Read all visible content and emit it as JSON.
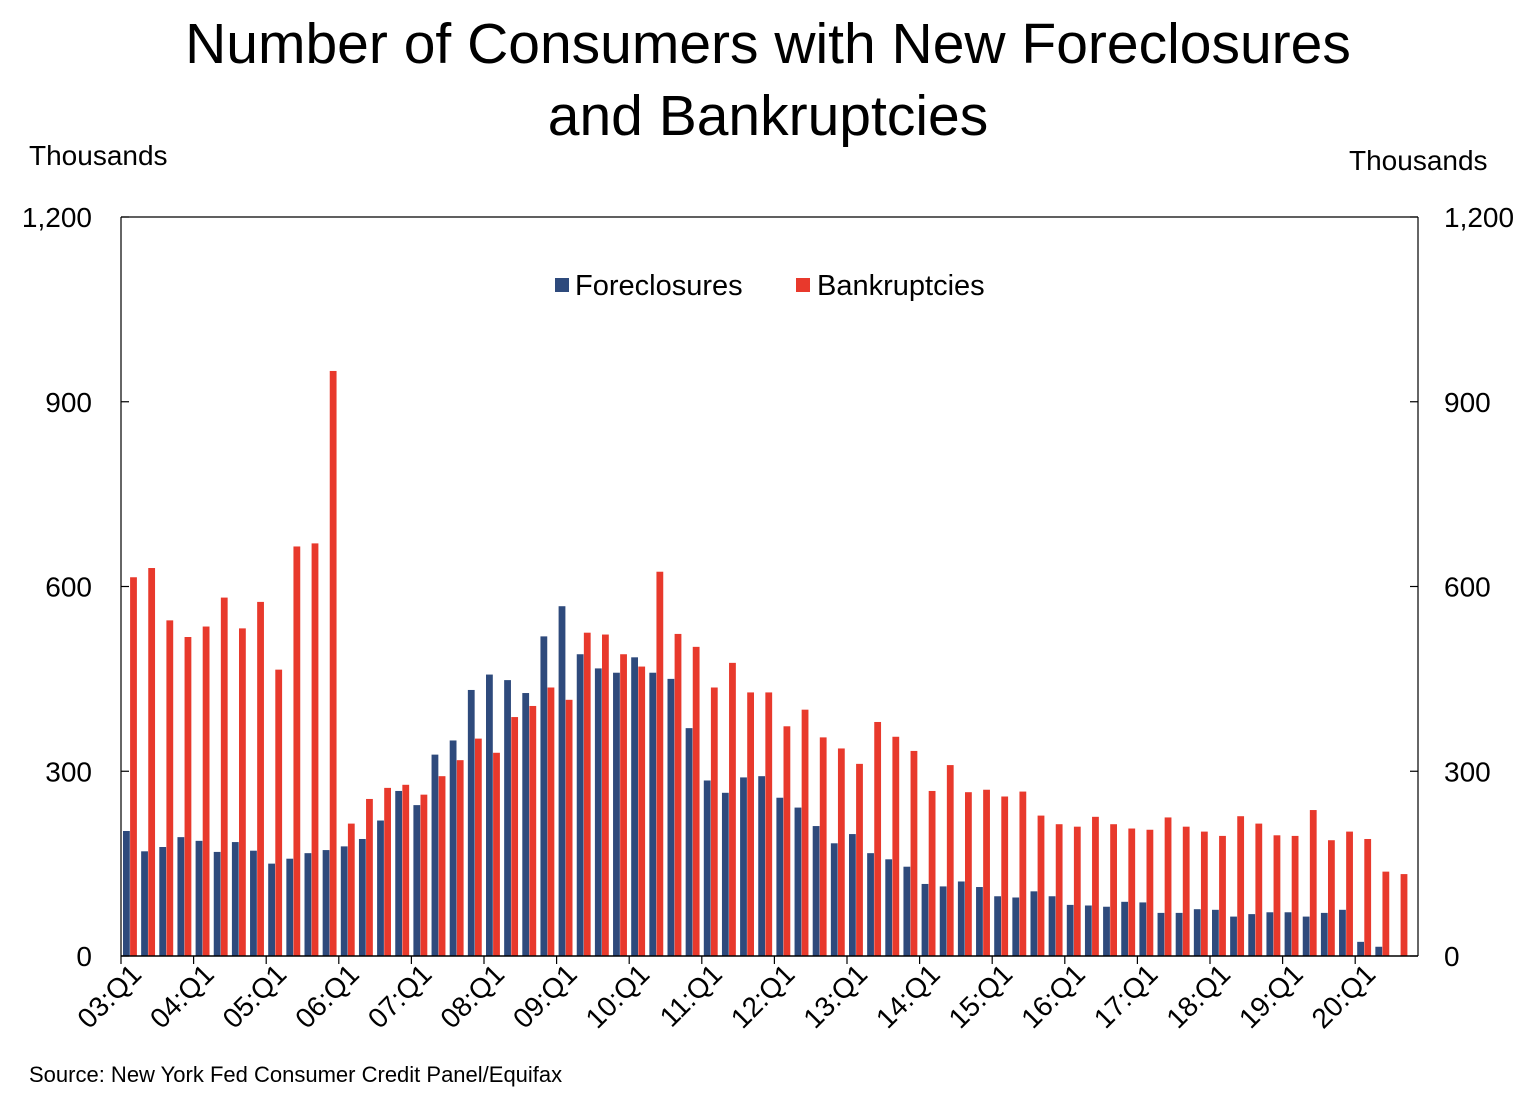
{
  "chart_data": {
    "type": "bar",
    "title": "Number of Consumers with New Foreclosures and Bankruptcies",
    "title_lines": [
      "Number of Consumers with New Foreclosures",
      "and Bankruptcies"
    ],
    "ylabel_left": "Thousands",
    "ylabel_right": "Thousands",
    "ylim": [
      0,
      1200
    ],
    "yticks": [
      0,
      300,
      600,
      900,
      1200
    ],
    "ytick_labels": [
      "0",
      "300",
      "600",
      "900",
      "1,200"
    ],
    "xtick_labels": [
      "03:Q1",
      "04:Q1",
      "05:Q1",
      "06:Q1",
      "07:Q1",
      "08:Q1",
      "09:Q1",
      "10:Q1",
      "11:Q1",
      "12:Q1",
      "13:Q1",
      "14:Q1",
      "15:Q1",
      "16:Q1",
      "17:Q1",
      "18:Q1",
      "19:Q1",
      "20:Q1"
    ],
    "legend_position": "top-center",
    "grid": false,
    "source": "Source: New York Fed Consumer Credit Panel/Equifax",
    "categories": [
      "03:Q1",
      "03:Q2",
      "03:Q3",
      "03:Q4",
      "04:Q1",
      "04:Q2",
      "04:Q3",
      "04:Q4",
      "05:Q1",
      "05:Q2",
      "05:Q3",
      "05:Q4",
      "06:Q1",
      "06:Q2",
      "06:Q3",
      "06:Q4",
      "07:Q1",
      "07:Q2",
      "07:Q3",
      "07:Q4",
      "08:Q1",
      "08:Q2",
      "08:Q3",
      "08:Q4",
      "09:Q1",
      "09:Q2",
      "09:Q3",
      "09:Q4",
      "10:Q1",
      "10:Q2",
      "10:Q3",
      "10:Q4",
      "11:Q1",
      "11:Q2",
      "11:Q3",
      "11:Q4",
      "12:Q1",
      "12:Q2",
      "12:Q3",
      "12:Q4",
      "13:Q1",
      "13:Q2",
      "13:Q3",
      "13:Q4",
      "14:Q1",
      "14:Q2",
      "14:Q3",
      "14:Q4",
      "15:Q1",
      "15:Q2",
      "15:Q3",
      "15:Q4",
      "16:Q1",
      "16:Q2",
      "16:Q3",
      "16:Q4",
      "17:Q1",
      "17:Q2",
      "17:Q3",
      "17:Q4",
      "18:Q1",
      "18:Q2",
      "18:Q3",
      "18:Q4",
      "19:Q1",
      "19:Q2",
      "19:Q3",
      "19:Q4",
      "20:Q1",
      "20:Q2",
      "20:Q3"
    ],
    "series": [
      {
        "name": "Foreclosures",
        "color": "#2e4a7c",
        "values": [
          203,
          170,
          177,
          193,
          187,
          169,
          185,
          171,
          150,
          158,
          167,
          172,
          178,
          190,
          220,
          268,
          245,
          327,
          350,
          432,
          457,
          448,
          427,
          519,
          568,
          490,
          467,
          460,
          485,
          460,
          450,
          370,
          285,
          265,
          290,
          292,
          257,
          241,
          211,
          183,
          198,
          167,
          157,
          145,
          117,
          113,
          121,
          112,
          97,
          95,
          105,
          97,
          83,
          82,
          80,
          88,
          87,
          70,
          70,
          76,
          75,
          64,
          68,
          71,
          71,
          64,
          70,
          75,
          23,
          15,
          null
        ]
      },
      {
        "name": "Bankruptcies",
        "color": "#e8392c",
        "values": [
          615,
          630,
          545,
          518,
          535,
          582,
          532,
          575,
          465,
          665,
          670,
          950,
          215,
          255,
          273,
          278,
          262,
          292,
          318,
          353,
          330,
          388,
          406,
          436,
          416,
          525,
          522,
          490,
          470,
          624,
          523,
          502,
          436,
          476,
          428,
          428,
          373,
          400,
          355,
          337,
          312,
          380,
          356,
          333,
          268,
          310,
          266,
          270,
          259,
          267,
          228,
          214,
          210,
          226,
          214,
          207,
          205,
          225,
          210,
          202,
          195,
          227,
          215,
          196,
          195,
          237,
          188,
          202,
          190,
          137,
          133
        ]
      }
    ]
  }
}
